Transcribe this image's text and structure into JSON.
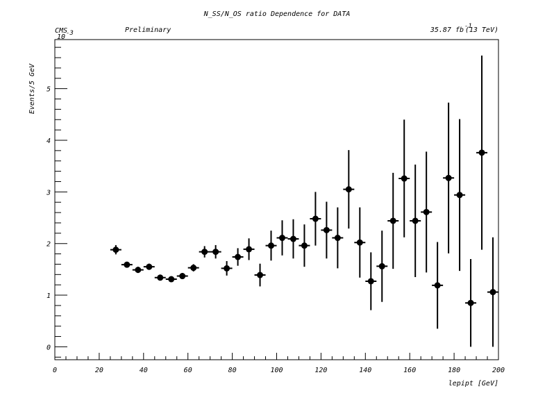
{
  "chart_data": {
    "type": "scatter",
    "title": "N_SS/N_OS ratio Dependence for DATA",
    "label_left": "CMS",
    "label_preliminary": "Preliminary",
    "lumi_label": "35.87 fb",
    "lumi_exponent": "-1",
    "energy_label": "(13 TeV)",
    "ylabel": "Events/5 GeV",
    "y_exponent": "10",
    "y_exponent_power": "-3",
    "xlabel": "lepipt [GeV]",
    "xlim": [
      0,
      200
    ],
    "ylim": [
      -0.25,
      5.95
    ],
    "x_ticks": [
      "0",
      "20",
      "40",
      "60",
      "80",
      "100",
      "120",
      "140",
      "160",
      "180",
      "200"
    ],
    "y_ticks": [
      "0",
      "1",
      "2",
      "3",
      "4",
      "5"
    ],
    "grid": false,
    "series": [
      {
        "x_err": 2.5,
        "points": [
          {
            "x": 27.5,
            "y": 1.88,
            "err": 0.09
          },
          {
            "x": 32.5,
            "y": 1.59,
            "err": 0.05
          },
          {
            "x": 37.5,
            "y": 1.49,
            "err": 0.06
          },
          {
            "x": 42.5,
            "y": 1.55,
            "err": 0.06
          },
          {
            "x": 47.5,
            "y": 1.34,
            "err": 0.05
          },
          {
            "x": 52.5,
            "y": 1.31,
            "err": 0.05
          },
          {
            "x": 57.5,
            "y": 1.37,
            "err": 0.06
          },
          {
            "x": 62.5,
            "y": 1.53,
            "err": 0.07
          },
          {
            "x": 67.5,
            "y": 1.84,
            "err": 0.11
          },
          {
            "x": 72.5,
            "y": 1.84,
            "err": 0.13
          },
          {
            "x": 77.5,
            "y": 1.52,
            "err": 0.14
          },
          {
            "x": 82.5,
            "y": 1.74,
            "err": 0.17
          },
          {
            "x": 87.5,
            "y": 1.89,
            "err": 0.21
          },
          {
            "x": 92.5,
            "y": 1.39,
            "err": 0.22
          },
          {
            "x": 97.5,
            "y": 1.96,
            "err": 0.29
          },
          {
            "x": 102.5,
            "y": 2.11,
            "err": 0.34
          },
          {
            "x": 107.5,
            "y": 2.09,
            "err": 0.38
          },
          {
            "x": 112.5,
            "y": 1.96,
            "err": 0.41
          },
          {
            "x": 117.5,
            "y": 2.48,
            "err": 0.52
          },
          {
            "x": 122.5,
            "y": 2.26,
            "err": 0.55
          },
          {
            "x": 127.5,
            "y": 2.11,
            "err": 0.59
          },
          {
            "x": 132.5,
            "y": 3.05,
            "err": 0.76
          },
          {
            "x": 137.5,
            "y": 2.02,
            "err": 0.68
          },
          {
            "x": 142.5,
            "y": 1.27,
            "err": 0.56
          },
          {
            "x": 147.5,
            "y": 1.56,
            "err": 0.69
          },
          {
            "x": 152.5,
            "y": 2.44,
            "err": 0.93
          },
          {
            "x": 157.5,
            "y": 3.26,
            "err": 1.14
          },
          {
            "x": 162.5,
            "y": 2.44,
            "err": 1.09
          },
          {
            "x": 167.5,
            "y": 2.61,
            "err": 1.17
          },
          {
            "x": 172.5,
            "y": 1.19,
            "err": 0.84
          },
          {
            "x": 177.5,
            "y": 3.27,
            "err": 1.46
          },
          {
            "x": 182.5,
            "y": 2.94,
            "err": 1.47
          },
          {
            "x": 187.5,
            "y": 0.85,
            "err": 0.85
          },
          {
            "x": 192.5,
            "y": 3.76,
            "err": 1.88
          },
          {
            "x": 197.5,
            "y": 1.06,
            "err": 1.06
          }
        ]
      }
    ]
  }
}
